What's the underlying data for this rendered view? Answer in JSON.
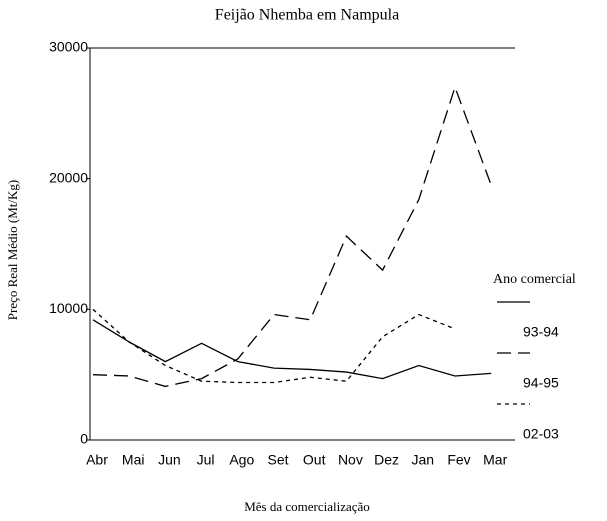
{
  "chart_data": {
    "type": "line",
    "title": "Feijão Nhemba em Nampula",
    "xlabel": "Mês da comercialização",
    "ylabel": "Preço Real Médio (Mt/Kg)",
    "legend_title": "Ano comercial",
    "categories": [
      "Abr",
      "Mai",
      "Jun",
      "Jul",
      "Ago",
      "Set",
      "Out",
      "Nov",
      "Dez",
      "Jan",
      "Fev",
      "Mar"
    ],
    "series": [
      {
        "name": "93-94",
        "color": "#000000",
        "dash": "solid",
        "values": [
          9200,
          7500,
          6000,
          7400,
          6000,
          5500,
          5400,
          5200,
          4700,
          5700,
          4900,
          5100
        ]
      },
      {
        "name": "94-95",
        "color": "#000000",
        "dash": "dashed",
        "values": [
          5000,
          4900,
          4100,
          4700,
          6200,
          9600,
          9200,
          15600,
          13000,
          18400,
          27000,
          19500
        ]
      },
      {
        "name": "02-03",
        "color": "#000000",
        "dash": "dotted",
        "values": [
          10000,
          7500,
          5700,
          4500,
          4400,
          4400,
          4800,
          4500,
          7900,
          9600,
          8500,
          null
        ]
      }
    ],
    "ylim": [
      0,
      30000
    ],
    "yticks": [
      0,
      10000,
      20000,
      30000
    ]
  }
}
